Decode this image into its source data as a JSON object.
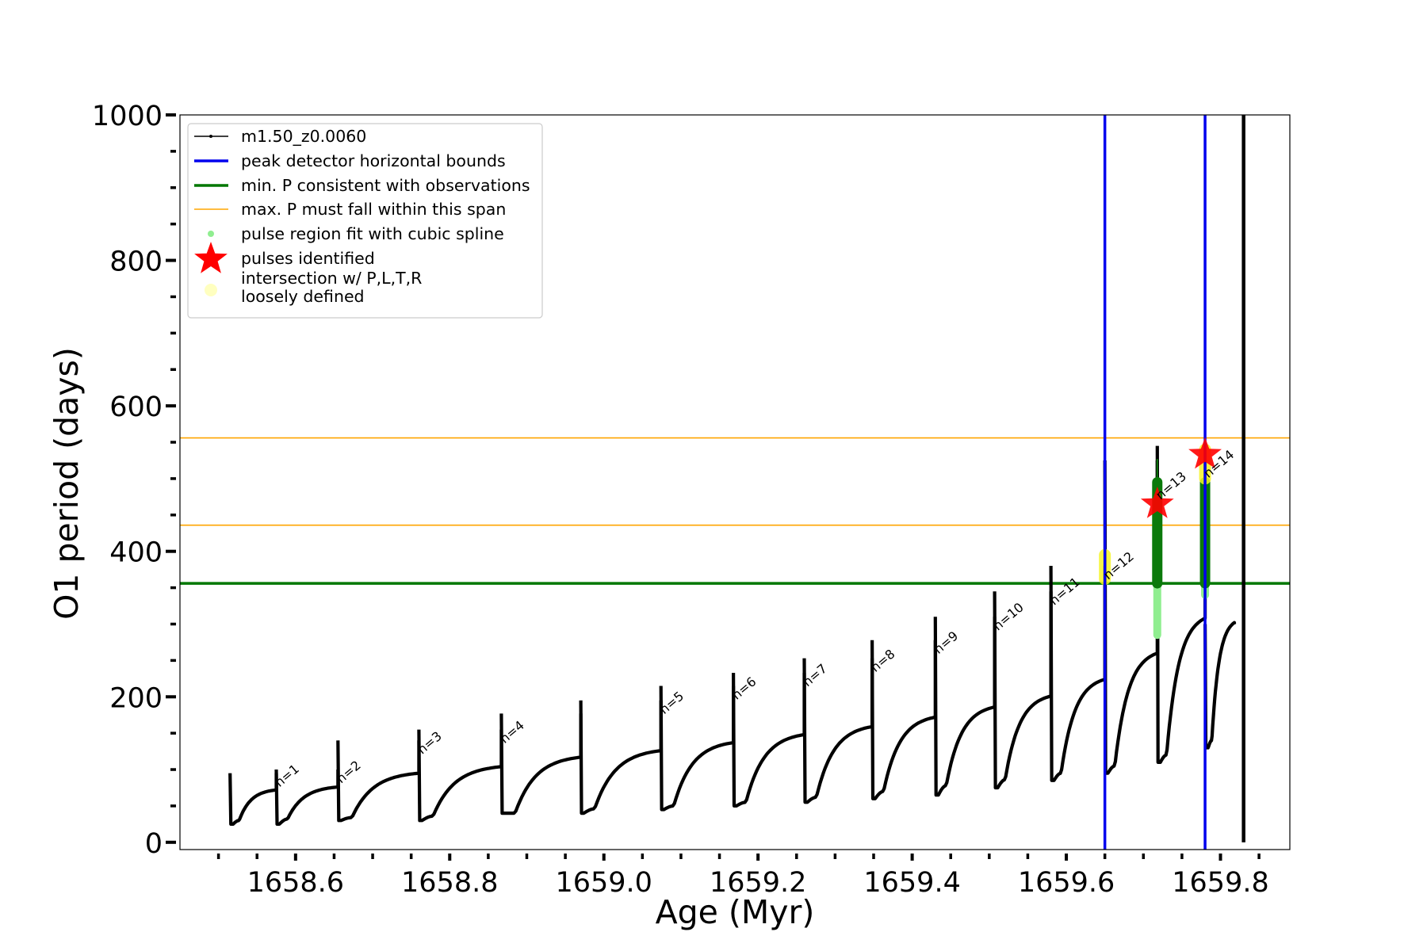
{
  "chart_data": {
    "type": "line",
    "xlabel": "Age (Myr)",
    "ylabel": "O1 period (days)",
    "xlim": [
      1658.45,
      1659.89
    ],
    "ylim": [
      -10,
      1000
    ],
    "x_ticks": [
      1658.6,
      1658.8,
      1659.0,
      1659.2,
      1659.4,
      1659.6,
      1659.8
    ],
    "x_tick_labels": [
      "1658.6",
      "1658.8",
      "1659.0",
      "1659.2",
      "1659.4",
      "1659.6",
      "1659.8"
    ],
    "y_ticks": [
      0,
      200,
      400,
      600,
      800,
      1000
    ],
    "y_tick_labels": [
      "0",
      "200",
      "400",
      "600",
      "800",
      "1000"
    ],
    "legend_position": "upper-left",
    "legend": [
      {
        "label": "m1.50_z0.0060",
        "kind": "line-marker",
        "color": "#000000"
      },
      {
        "label": "peak detector horizontal bounds",
        "kind": "line",
        "color": "#0000ee"
      },
      {
        "label": "min. P consistent with observations",
        "kind": "line",
        "color": "#007700"
      },
      {
        "label": "max. P must fall within this span",
        "kind": "thin-line",
        "color": "#ffa500"
      },
      {
        "label": "pulse region fit with cubic spline",
        "kind": "dot",
        "color": "#90ee90"
      },
      {
        "label": "pulses identified",
        "kind": "star",
        "color": "#ff0000"
      },
      {
        "label_lines": [
          "intersection w/ P,L,T,R",
          "loosely defined"
        ],
        "kind": "dot",
        "color": "#ffffc0"
      }
    ],
    "series": [
      {
        "name": "m1.50_z0.0060",
        "color": "#000000",
        "cycles": [
          {
            "start": 1658.515,
            "peak": 1658.575,
            "spike": 95,
            "min": 25,
            "base_start": 30,
            "base_end": 72
          },
          {
            "start": 1658.575,
            "peak": 1658.655,
            "spike": 100,
            "min": 25,
            "base_start": 32,
            "base_end": 76
          },
          {
            "start": 1658.655,
            "peak": 1658.76,
            "spike": 140,
            "min": 30,
            "base_start": 34,
            "base_end": 95
          },
          {
            "start": 1658.76,
            "peak": 1658.867,
            "spike": 155,
            "min": 30,
            "base_start": 36,
            "base_end": 104
          },
          {
            "start": 1658.867,
            "peak": 1658.97,
            "spike": 177,
            "min": 40,
            "base_start": 40,
            "base_end": 117
          },
          {
            "start": 1658.97,
            "peak": 1659.074,
            "spike": 195,
            "min": 40,
            "base_start": 46,
            "base_end": 126
          },
          {
            "start": 1659.074,
            "peak": 1659.168,
            "spike": 215,
            "min": 45,
            "base_start": 50,
            "base_end": 137
          },
          {
            "start": 1659.168,
            "peak": 1659.26,
            "spike": 233,
            "min": 50,
            "base_start": 55,
            "base_end": 148
          },
          {
            "start": 1659.26,
            "peak": 1659.348,
            "spike": 253,
            "min": 55,
            "base_start": 62,
            "base_end": 159
          },
          {
            "start": 1659.348,
            "peak": 1659.43,
            "spike": 278,
            "min": 60,
            "base_start": 70,
            "base_end": 172
          },
          {
            "start": 1659.43,
            "peak": 1659.507,
            "spike": 310,
            "min": 65,
            "base_start": 78,
            "base_end": 186
          },
          {
            "start": 1659.507,
            "peak": 1659.58,
            "spike": 345,
            "min": 75,
            "base_start": 86,
            "base_end": 201
          },
          {
            "start": 1659.58,
            "peak": 1659.65,
            "spike": 380,
            "min": 85,
            "base_start": 95,
            "base_end": 224
          },
          {
            "start": 1659.65,
            "peak": 1659.718,
            "spike": 525,
            "min": 95,
            "base_start": 105,
            "base_end": 260
          },
          {
            "start": 1659.718,
            "peak": 1659.78,
            "spike": 545,
            "min": 110,
            "base_start": 120,
            "base_end": 308
          },
          {
            "start": 1659.78,
            "peak": 1659.818,
            "spike": 300,
            "min": 130,
            "base_start": 140,
            "base_end": 302
          }
        ],
        "final_drop": {
          "x": 1659.83,
          "ymin": 0,
          "ymax": 1000
        }
      }
    ],
    "horizontal_lines": [
      {
        "y": 356,
        "color": "#007700",
        "width": 3.5
      },
      {
        "y": 436,
        "color": "#ffa500",
        "width": 1.6
      },
      {
        "y": 556,
        "color": "#ffa500",
        "width": 1.6
      }
    ],
    "vertical_lines": [
      {
        "x": 1659.65,
        "color": "#0000ee",
        "width": 3.5
      },
      {
        "x": 1659.78,
        "color": "#0000ee",
        "width": 3.5
      }
    ],
    "pulse_labels": [
      {
        "text": "n=1",
        "x": 1658.575,
        "y": 95
      },
      {
        "text": "n=2",
        "x": 1658.655,
        "y": 100
      },
      {
        "text": "n=3",
        "x": 1658.76,
        "y": 140
      },
      {
        "text": "n=4",
        "x": 1658.867,
        "y": 155
      },
      {
        "text": "n=5",
        "x": 1659.074,
        "y": 195
      },
      {
        "text": "n=6",
        "x": 1659.168,
        "y": 215
      },
      {
        "text": "n=7",
        "x": 1659.26,
        "y": 233
      },
      {
        "text": "n=8",
        "x": 1659.348,
        "y": 253
      },
      {
        "text": "n=9",
        "x": 1659.43,
        "y": 278
      },
      {
        "text": "n=10",
        "x": 1659.507,
        "y": 310
      },
      {
        "text": "n=11",
        "x": 1659.58,
        "y": 345
      },
      {
        "text": "n=12",
        "x": 1659.65,
        "y": 380
      },
      {
        "text": "n=13",
        "x": 1659.718,
        "y": 490
      },
      {
        "text": "n=14",
        "x": 1659.78,
        "y": 520
      }
    ],
    "spline_regions": [
      {
        "x": 1659.718,
        "y_from": 285,
        "y_to": 495,
        "color": "#90ee90"
      },
      {
        "x": 1659.78,
        "y_from": 340,
        "y_to": 495,
        "color": "#90ee90"
      }
    ],
    "green_bands": [
      {
        "x": 1659.718,
        "y_from": 356,
        "y_to": 495
      },
      {
        "x": 1659.78,
        "y_from": 356,
        "y_to": 495
      }
    ],
    "yellow_regions": [
      {
        "x": 1659.65,
        "y_from": 362,
        "y_to": 395
      },
      {
        "x": 1659.78,
        "y_from": 500,
        "y_to": 540
      }
    ],
    "pulses_identified": [
      {
        "x": 1659.718,
        "y": 465
      },
      {
        "x": 1659.78,
        "y": 533
      }
    ]
  }
}
